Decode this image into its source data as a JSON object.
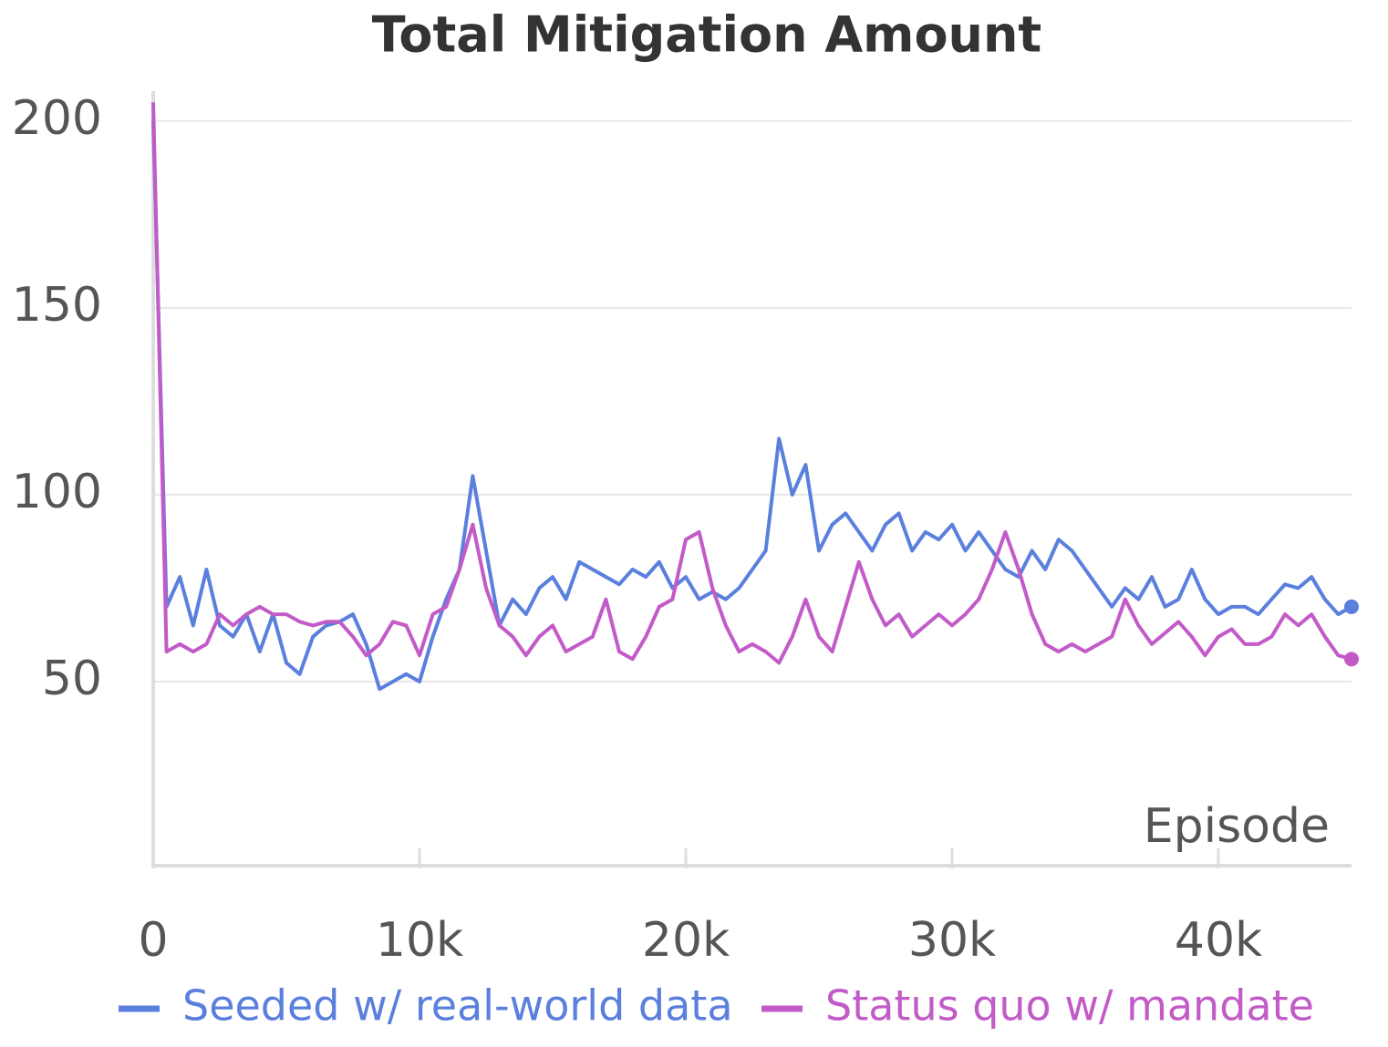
{
  "chart_data": {
    "type": "line",
    "title": "Total Mitigation Amount",
    "x_label": "Episode",
    "x": [
      0,
      500,
      1000,
      1500,
      2000,
      2500,
      3000,
      3500,
      4000,
      4500,
      5000,
      5500,
      6000,
      6500,
      7000,
      7500,
      8000,
      8500,
      9000,
      9500,
      10000,
      10500,
      11000,
      11500,
      12000,
      12500,
      13000,
      13500,
      14000,
      14500,
      15000,
      15500,
      16000,
      16500,
      17000,
      17500,
      18000,
      18500,
      19000,
      19500,
      20000,
      20500,
      21000,
      21500,
      22000,
      22500,
      23000,
      23500,
      24000,
      24500,
      25000,
      25500,
      26000,
      26500,
      27000,
      27500,
      28000,
      28500,
      29000,
      29500,
      30000,
      30500,
      31000,
      31500,
      32000,
      32500,
      33000,
      33500,
      34000,
      34500,
      35000,
      35500,
      36000,
      36500,
      37000,
      37500,
      38000,
      38500,
      39000,
      39500,
      40000,
      40500,
      41000,
      41500,
      42000,
      42500,
      43000,
      43500,
      44000,
      44500,
      45000
    ],
    "series": [
      {
        "name": "Seeded w/ real-world data",
        "color": "#5a7fdd",
        "values": [
          200,
          70,
          78,
          65,
          80,
          65,
          62,
          68,
          58,
          68,
          55,
          52,
          62,
          65,
          66,
          68,
          60,
          48,
          50,
          52,
          50,
          62,
          72,
          80,
          105,
          85,
          65,
          72,
          68,
          75,
          78,
          72,
          82,
          80,
          78,
          76,
          80,
          78,
          82,
          75,
          78,
          72,
          74,
          72,
          75,
          80,
          85,
          115,
          100,
          108,
          85,
          92,
          95,
          90,
          85,
          92,
          95,
          85,
          90,
          88,
          92,
          85,
          90,
          85,
          80,
          78,
          85,
          80,
          88,
          85,
          80,
          75,
          70,
          75,
          72,
          78,
          70,
          72,
          80,
          72,
          68,
          70,
          70,
          68,
          72,
          76,
          75,
          78,
          72,
          68,
          70
        ]
      },
      {
        "name": "Status quo w/ mandate",
        "color": "#c25bc8",
        "values": [
          205,
          58,
          60,
          58,
          60,
          68,
          65,
          68,
          70,
          68,
          68,
          66,
          65,
          66,
          66,
          62,
          57,
          60,
          66,
          65,
          57,
          68,
          70,
          80,
          92,
          75,
          65,
          62,
          57,
          62,
          65,
          58,
          60,
          62,
          72,
          58,
          56,
          62,
          70,
          72,
          88,
          90,
          75,
          65,
          58,
          60,
          58,
          55,
          62,
          72,
          62,
          58,
          70,
          82,
          72,
          65,
          68,
          62,
          65,
          68,
          65,
          68,
          72,
          80,
          90,
          80,
          68,
          60,
          58,
          60,
          58,
          60,
          62,
          72,
          65,
          60,
          63,
          66,
          62,
          57,
          62,
          64,
          60,
          60,
          62,
          68,
          65,
          68,
          62,
          57,
          56
        ]
      }
    ],
    "xlim": [
      0,
      45000
    ],
    "ylim": [
      0,
      208
    ],
    "xticks": [
      0,
      {
        "value": 10000,
        "label": "10k"
      },
      {
        "value": 20000,
        "label": "20k"
      },
      {
        "value": 30000,
        "label": "30k"
      },
      {
        "value": 40000,
        "label": "40k"
      }
    ],
    "yticks": [
      50,
      100,
      150,
      200
    ],
    "grid": true
  }
}
